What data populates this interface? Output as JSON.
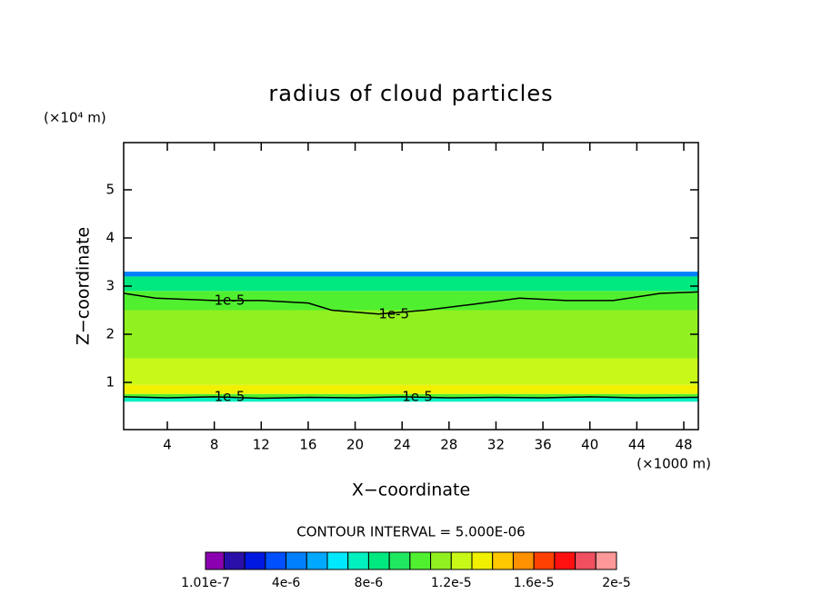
{
  "chart_data": {
    "type": "contour",
    "title": "radius of cloud particles",
    "x_label": "X−coordinate",
    "y_label": "Z−coordinate",
    "x_unit": "(×1000 m)",
    "y_unit": "(×10⁴ m)",
    "annotation": "CONTOUR INTERVAL = 5.000E-06",
    "xlim": [
      0.28,
      49.24
    ],
    "ylim": [
      0.02,
      5.98
    ],
    "xticks": [
      4,
      8,
      12,
      16,
      20,
      24,
      28,
      32,
      36,
      40,
      44,
      48
    ],
    "yticks": [
      1,
      2,
      3,
      4,
      5
    ],
    "levels": [
      1.01e-07,
      1e-06,
      2e-06,
      3e-06,
      4e-06,
      5e-06,
      6e-06,
      7e-06,
      8e-06,
      9e-06,
      1e-05,
      1.1e-05,
      1.2e-05,
      1.3e-05,
      1.4e-05,
      1.5e-05,
      1.6e-05,
      1.7e-05,
      1.8e-05,
      1.9e-05,
      2e-05
    ],
    "colors": [
      "#8a00b0",
      "#2a10a8",
      "#0018e0",
      "#0050ff",
      "#0080ff",
      "#00a8ff",
      "#00e8ff",
      "#00f0c0",
      "#00e880",
      "#20e860",
      "#50f030",
      "#90f020",
      "#c8f818",
      "#f0f000",
      "#ffc800",
      "#ff9000",
      "#ff4000",
      "#ff1010",
      "#f05060",
      "#ff9898"
    ],
    "colorbar_ticks": [
      {
        "value": 1.01e-07,
        "label": "1.01e-7"
      },
      {
        "value": 4e-06,
        "label": "4e-6"
      },
      {
        "value": 8e-06,
        "label": "8e-6"
      },
      {
        "value": 1.2e-05,
        "label": "1.2e-5"
      },
      {
        "value": 1.6e-05,
        "label": "1.6e-5"
      },
      {
        "value": 2e-05,
        "label": "2e-5"
      }
    ],
    "bands": [
      {
        "z": [
          0.6,
          0.68
        ],
        "value": 7.5e-06
      },
      {
        "z": [
          0.68,
          0.76
        ],
        "value": 1.05e-05
      },
      {
        "z": [
          0.76,
          0.95
        ],
        "value": 1.35e-05
      },
      {
        "z": [
          0.95,
          1.5
        ],
        "value": 1.25e-05
      },
      {
        "z": [
          1.5,
          2.5
        ],
        "value": 1.15e-05
      },
      {
        "z": [
          2.5,
          2.9
        ],
        "value": 1.05e-05
      },
      {
        "z": [
          2.9,
          3.2
        ],
        "value": 8.5e-06
      },
      {
        "z": [
          3.2,
          3.3
        ],
        "value": 4.5e-06
      }
    ],
    "contours": [
      {
        "label": "1e-5",
        "x": [
          0.3,
          3,
          8,
          12,
          16,
          18,
          22,
          26,
          30,
          34,
          38,
          42,
          46,
          49.2
        ],
        "z": [
          2.85,
          2.75,
          2.7,
          2.7,
          2.65,
          2.5,
          2.42,
          2.5,
          2.62,
          2.75,
          2.7,
          2.7,
          2.85,
          2.88
        ]
      },
      {
        "label": "1e-5",
        "x": [
          0.3,
          4,
          8,
          12,
          16,
          20,
          24,
          28,
          32,
          36,
          40,
          44,
          49.2
        ],
        "z": [
          0.7,
          0.68,
          0.7,
          0.67,
          0.69,
          0.68,
          0.7,
          0.68,
          0.69,
          0.68,
          0.7,
          0.68,
          0.69
        ]
      }
    ]
  }
}
